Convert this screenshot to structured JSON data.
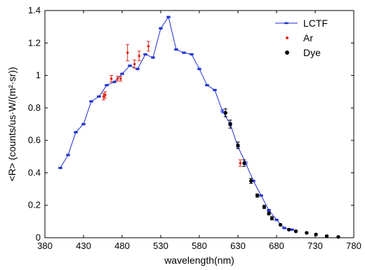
{
  "chart_data": {
    "type": "scatter",
    "title": "",
    "xlabel": "wavelength(nm)",
    "ylabel": "<R> (counts/us·W/(m²·sr))",
    "xlim": [
      380,
      780
    ],
    "ylim": [
      0,
      1.4
    ],
    "xticks": [
      "380",
      "430",
      "480",
      "530",
      "580",
      "630",
      "680",
      "730",
      "780"
    ],
    "yticks": [
      "0",
      "0.2",
      "0.4",
      "0.6",
      "0.8",
      "1",
      "1.2",
      "1.4"
    ],
    "grid": false,
    "legend_position": "top-right",
    "series": [
      {
        "name": "LCTF",
        "kind": "line",
        "color": "#1f2fd1",
        "x": [
          400,
          410,
          420,
          430,
          440,
          450,
          460,
          470,
          480,
          490,
          500,
          510,
          520,
          530,
          540,
          550,
          560,
          570,
          580,
          590,
          600,
          610,
          620,
          630,
          640,
          650,
          660,
          670,
          680,
          690,
          700
        ],
        "y": [
          0.43,
          0.51,
          0.65,
          0.7,
          0.84,
          0.87,
          0.94,
          0.96,
          1.01,
          1.06,
          1.04,
          1.13,
          1.11,
          1.29,
          1.36,
          1.16,
          1.14,
          1.13,
          1.04,
          0.94,
          0.91,
          0.78,
          0.7,
          0.56,
          0.46,
          0.35,
          0.26,
          0.17,
          0.11,
          0.06,
          0.05
        ],
        "err": [
          0.005,
          0.005,
          0.005,
          0.005,
          0.005,
          0.005,
          0.005,
          0.005,
          0.005,
          0.005,
          0.005,
          0.005,
          0.005,
          0.005,
          0.005,
          0.005,
          0.005,
          0.005,
          0.005,
          0.005,
          0.005,
          0.01,
          0.01,
          0.01,
          0.01,
          0.005,
          0.005,
          0.005,
          0.005,
          0.005,
          0.005
        ]
      },
      {
        "name": "Ar",
        "kind": "errorbar",
        "color": "#e0291e",
        "x": [
          456,
          458,
          466,
          474,
          478,
          487,
          496,
          502,
          514,
          633
        ],
        "y": [
          0.87,
          0.88,
          0.98,
          0.98,
          0.98,
          1.14,
          1.07,
          1.12,
          1.18,
          0.46
        ],
        "err": [
          0.02,
          0.02,
          0.02,
          0.015,
          0.015,
          0.05,
          0.025,
          0.03,
          0.03,
          0.02
        ]
      },
      {
        "name": "Dye",
        "kind": "errorbar",
        "color": "#000000",
        "x": [
          614,
          620,
          630,
          638,
          647,
          655,
          664,
          670,
          674,
          685,
          696,
          705,
          719,
          731,
          745,
          760
        ],
        "y": [
          0.77,
          0.7,
          0.57,
          0.46,
          0.35,
          0.26,
          0.19,
          0.15,
          0.12,
          0.08,
          0.05,
          0.04,
          0.03,
          0.02,
          0.01,
          0.005
        ],
        "err": [
          0.025,
          0.025,
          0.02,
          0.02,
          0.015,
          0.01,
          0.01,
          0.01,
          0.01,
          0.005,
          0.005,
          0.005,
          0.005,
          0.005,
          0.005,
          0.005
        ]
      }
    ]
  }
}
